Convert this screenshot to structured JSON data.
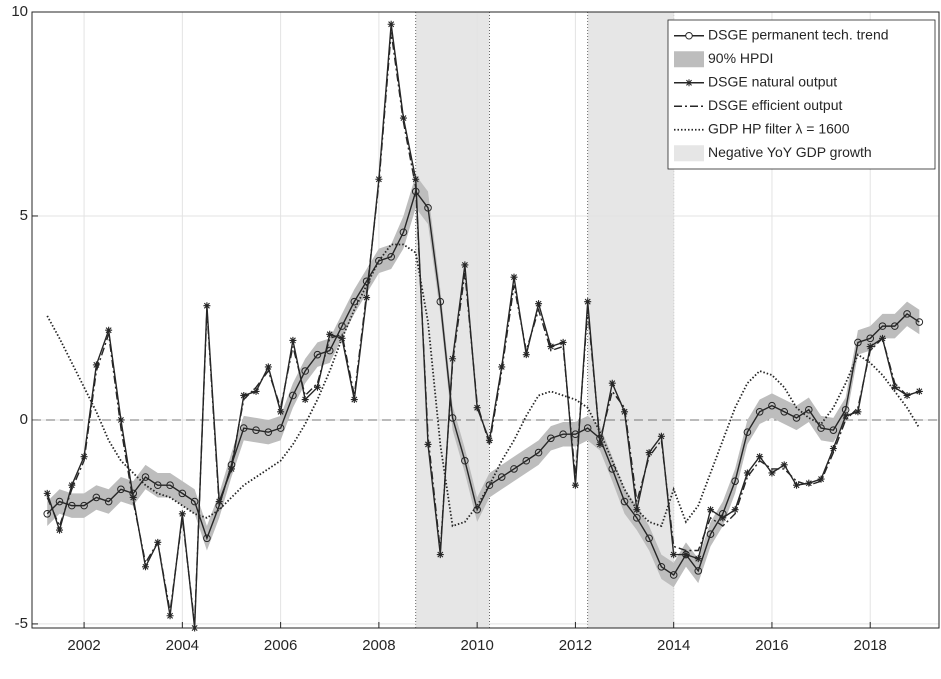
{
  "chart_data": {
    "type": "line",
    "x": [
      2001.25,
      2001.5,
      2001.75,
      2002,
      2002.25,
      2002.5,
      2002.75,
      2003,
      2003.25,
      2003.5,
      2003.75,
      2004,
      2004.25,
      2004.5,
      2004.75,
      2005,
      2005.25,
      2005.5,
      2005.75,
      2006,
      2006.25,
      2006.5,
      2006.75,
      2007,
      2007.25,
      2007.5,
      2007.75,
      2008,
      2008.25,
      2008.5,
      2008.75,
      2009,
      2009.25,
      2009.5,
      2009.75,
      2010,
      2010.25,
      2010.5,
      2010.75,
      2011,
      2011.25,
      2011.5,
      2011.75,
      2012,
      2012.25,
      2012.5,
      2012.75,
      2013,
      2013.25,
      2013.5,
      2013.75,
      2014,
      2014.25,
      2014.5,
      2014.75,
      2015,
      2015.25,
      2015.5,
      2015.75,
      2016,
      2016.25,
      2016.5,
      2016.75,
      2017,
      2017.25,
      2017.5,
      2017.75,
      2018,
      2018.25,
      2018.5,
      2018.75,
      2019
    ],
    "shaded": {
      "name": "Negative YoY GDP growth",
      "color": "#e6e6e6",
      "ranges": [
        [
          2008.75,
          2010.25
        ],
        [
          2012.25,
          2014.0
        ]
      ]
    },
    "band": {
      "name": "90% HPDI",
      "color": "#bdbdbd",
      "lower": [
        -2.6,
        -2.3,
        -2.4,
        -2.4,
        -2.2,
        -2.3,
        -2.0,
        -2.1,
        -1.7,
        -1.9,
        -1.9,
        -2.1,
        -2.3,
        -3.2,
        -2.4,
        -1.4,
        -0.5,
        -0.55,
        -0.6,
        -0.5,
        0.3,
        0.9,
        1.3,
        1.4,
        2.0,
        2.6,
        3.1,
        3.6,
        3.7,
        4.2,
        5.2,
        4.8,
        2.6,
        -0.25,
        -1.3,
        -2.5,
        -1.9,
        -1.7,
        -1.5,
        -1.3,
        -1.1,
        -0.75,
        -0.65,
        -0.65,
        -0.5,
        -0.75,
        -1.5,
        -2.3,
        -2.7,
        -3.2,
        -3.9,
        -4.1,
        -3.6,
        -4.0,
        -3.1,
        -2.6,
        -1.8,
        -0.6,
        -0.1,
        0.05,
        -0.1,
        -0.25,
        -0.05,
        -0.5,
        -0.55,
        -0.05,
        1.6,
        1.7,
        2.0,
        2.0,
        2.3,
        2.1
      ],
      "upper": [
        -2.0,
        -1.7,
        -1.8,
        -1.8,
        -1.6,
        -1.7,
        -1.4,
        -1.5,
        -1.1,
        -1.3,
        -1.3,
        -1.5,
        -1.7,
        -2.6,
        -1.8,
        -0.8,
        0.1,
        0.05,
        0.0,
        0.1,
        0.9,
        1.5,
        1.9,
        2.0,
        2.6,
        3.2,
        3.7,
        4.2,
        4.3,
        5.0,
        6.0,
        5.6,
        3.2,
        0.35,
        -0.7,
        -1.9,
        -1.3,
        -1.1,
        -0.9,
        -0.7,
        -0.5,
        -0.15,
        -0.05,
        -0.05,
        0.1,
        -0.15,
        -0.9,
        -1.7,
        -2.1,
        -2.6,
        -3.3,
        -3.5,
        -3.0,
        -3.4,
        -2.5,
        -2.0,
        -1.2,
        0.0,
        0.5,
        0.65,
        0.5,
        0.35,
        0.55,
        0.1,
        0.05,
        0.55,
        2.2,
        2.3,
        2.6,
        2.6,
        2.9,
        2.7
      ]
    },
    "series": [
      {
        "name": "DSGE permanent tech. trend",
        "color": "#262626",
        "style": "circle-line",
        "values": [
          -2.3,
          -2.0,
          -2.1,
          -2.1,
          -1.9,
          -2.0,
          -1.7,
          -1.8,
          -1.4,
          -1.6,
          -1.6,
          -1.8,
          -2.0,
          -2.9,
          -2.1,
          -1.1,
          -0.2,
          -0.25,
          -0.3,
          -0.2,
          0.6,
          1.2,
          1.6,
          1.7,
          2.3,
          2.9,
          3.4,
          3.9,
          4.0,
          4.6,
          5.6,
          5.2,
          2.9,
          0.05,
          -1.0,
          -2.2,
          -1.6,
          -1.4,
          -1.2,
          -1.0,
          -0.8,
          -0.45,
          -0.35,
          -0.35,
          -0.2,
          -0.45,
          -1.2,
          -2.0,
          -2.4,
          -2.9,
          -3.6,
          -3.8,
          -3.3,
          -3.7,
          -2.8,
          -2.3,
          -1.5,
          -0.3,
          0.2,
          0.35,
          0.2,
          0.05,
          0.25,
          -0.2,
          -0.25,
          0.25,
          1.9,
          2.0,
          2.3,
          2.3,
          2.6,
          2.4
        ]
      },
      {
        "name": "DSGE natural output",
        "color": "#262626",
        "style": "star-line",
        "values": [
          -1.8,
          -2.7,
          -1.6,
          -0.9,
          1.35,
          2.2,
          0.0,
          -1.9,
          -3.6,
          -3.0,
          -4.8,
          -2.3,
          -5.1,
          2.8,
          -2.0,
          -1.2,
          0.6,
          0.7,
          1.3,
          0.2,
          1.95,
          0.5,
          0.8,
          2.1,
          2.0,
          0.5,
          3.0,
          5.9,
          9.7,
          7.4,
          5.9,
          -0.6,
          -3.3,
          1.5,
          3.8,
          0.3,
          -0.5,
          1.3,
          3.5,
          1.6,
          2.85,
          1.8,
          1.9,
          -1.6,
          2.9,
          -0.6,
          0.9,
          0.2,
          -2.2,
          -0.8,
          -0.4,
          -3.3,
          -3.3,
          -3.4,
          -2.2,
          -2.4,
          -2.2,
          -1.3,
          -0.9,
          -1.3,
          -1.1,
          -1.6,
          -1.55,
          -1.45,
          -0.7,
          0.1,
          0.2,
          1.8,
          2.0,
          0.8,
          0.6,
          0.7
        ]
      },
      {
        "name": "DSGE efficient output",
        "color": "#262626",
        "style": "dashdot",
        "values": [
          -1.9,
          -2.6,
          -1.7,
          -1.0,
          1.2,
          2.1,
          -0.2,
          -2.0,
          -3.5,
          -3.0,
          -4.7,
          -2.4,
          -5.0,
          2.7,
          -2.1,
          -1.1,
          0.5,
          0.8,
          1.2,
          0.3,
          1.8,
          0.6,
          0.9,
          2.0,
          2.1,
          0.6,
          3.1,
          5.8,
          9.5,
          7.3,
          5.7,
          -0.4,
          -3.2,
          1.4,
          3.6,
          0.4,
          -0.6,
          1.2,
          3.3,
          1.7,
          2.7,
          1.7,
          1.8,
          -1.4,
          2.7,
          -0.5,
          0.7,
          0.3,
          -2.0,
          -0.9,
          -0.5,
          -3.1,
          -3.2,
          -3.2,
          -2.4,
          -2.6,
          -2.3,
          -1.4,
          -1.0,
          -1.2,
          -1.2,
          -1.5,
          -1.6,
          -1.5,
          -0.8,
          0.0,
          0.3,
          1.7,
          2.0,
          0.9,
          0.6,
          0.7
        ]
      },
      {
        "name": "GDP HP filter λ = 1600",
        "color": "#262626",
        "style": "dotted",
        "values": [
          2.55,
          2.0,
          1.4,
          0.8,
          0.2,
          -0.5,
          -1.0,
          -1.3,
          -1.6,
          -1.8,
          -1.9,
          -2.1,
          -2.3,
          -2.4,
          -2.2,
          -1.9,
          -1.6,
          -1.4,
          -1.2,
          -1.0,
          -0.6,
          -0.1,
          0.5,
          1.2,
          2.0,
          2.7,
          3.3,
          3.9,
          4.3,
          4.3,
          4.1,
          2.4,
          -0.6,
          -2.6,
          -2.5,
          -2.1,
          -1.6,
          -1.0,
          -0.5,
          0.1,
          0.6,
          0.7,
          0.6,
          0.5,
          0.3,
          -0.3,
          -1.0,
          -1.7,
          -2.2,
          -2.5,
          -2.6,
          -1.7,
          -2.5,
          -2.1,
          -1.3,
          -0.5,
          0.3,
          0.9,
          1.2,
          1.1,
          0.8,
          0.3,
          0.05,
          -0.1,
          0.3,
          0.9,
          1.6,
          1.4,
          1.1,
          0.7,
          0.3,
          -0.2
        ]
      }
    ],
    "xlim": [
      2000.94,
      2019.4
    ],
    "ylim": [
      -5.1,
      10
    ],
    "xticks": [
      2002,
      2004,
      2006,
      2008,
      2010,
      2012,
      2014,
      2016,
      2018
    ],
    "yticks": [
      -5,
      0,
      5,
      10
    ],
    "grid": true,
    "zero_line": true,
    "legend": "upper right"
  }
}
